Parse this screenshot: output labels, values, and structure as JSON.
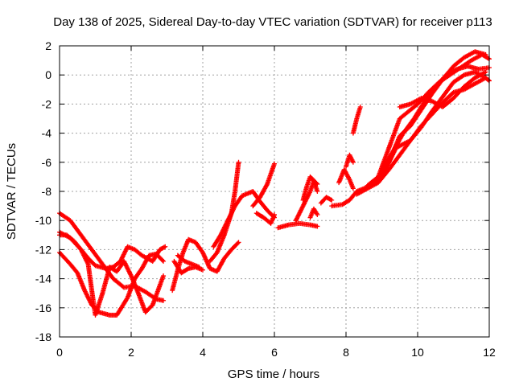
{
  "chart_data": {
    "type": "scatter",
    "title": "Day 138 of 2025, Sidereal Day-to-day VTEC variation (SDTVAR) for receiver p113",
    "xlabel": "GPS time / hours",
    "ylabel": "SDTVAR / TECUs",
    "xlim": [
      0,
      12
    ],
    "ylim": [
      -18,
      2
    ],
    "xticks": [
      0,
      2,
      4,
      6,
      8,
      10,
      12
    ],
    "yticks": [
      -18,
      -16,
      -14,
      -12,
      -10,
      -8,
      -6,
      -4,
      -2,
      0,
      2
    ],
    "xtick_labels": [
      "0",
      "2",
      "4",
      "6",
      "8",
      "10",
      "12"
    ],
    "ytick_labels": [
      "-18",
      "-16",
      "-14",
      "-12",
      "-10",
      "-8",
      "-6",
      "-4",
      "-2",
      "0",
      "2"
    ],
    "grid": true,
    "marker": "+",
    "color": "#ff0000",
    "series": [
      {
        "points": [
          [
            0.0,
            -9.5
          ],
          [
            0.3,
            -10.0
          ],
          [
            0.6,
            -11.0
          ],
          [
            0.9,
            -12.0
          ],
          [
            1.2,
            -13.0
          ],
          [
            1.5,
            -14.0
          ],
          [
            1.8,
            -14.6
          ],
          [
            2.1,
            -14.5
          ],
          [
            2.4,
            -14.9
          ],
          [
            2.7,
            -15.4
          ],
          [
            2.9,
            -15.5
          ]
        ]
      },
      {
        "points": [
          [
            0.0,
            -10.8
          ],
          [
            0.3,
            -11.2
          ],
          [
            0.6,
            -12.0
          ],
          [
            0.8,
            -13.0
          ],
          [
            0.9,
            -14.8
          ],
          [
            1.0,
            -16.5
          ],
          [
            1.2,
            -15.0
          ],
          [
            1.4,
            -13.2
          ],
          [
            1.6,
            -13.5
          ],
          [
            1.8,
            -12.8
          ],
          [
            2.0,
            -13.8
          ],
          [
            2.2,
            -15.0
          ],
          [
            2.4,
            -16.3
          ],
          [
            2.6,
            -15.8
          ],
          [
            2.9,
            -13.8
          ]
        ]
      },
      {
        "points": [
          [
            0.0,
            -12.2
          ],
          [
            0.3,
            -13.0
          ],
          [
            0.5,
            -13.6
          ],
          [
            0.7,
            -14.8
          ],
          [
            0.9,
            -15.8
          ],
          [
            1.1,
            -16.3
          ],
          [
            1.4,
            -16.5
          ],
          [
            1.6,
            -16.5
          ],
          [
            1.9,
            -15.3
          ],
          [
            2.1,
            -14.0
          ],
          [
            2.3,
            -13.3
          ],
          [
            2.5,
            -12.4
          ],
          [
            2.7,
            -12.3
          ],
          [
            2.9,
            -12.8
          ]
        ]
      },
      {
        "points": [
          [
            0.0,
            -11.0
          ],
          [
            0.2,
            -11.0
          ],
          [
            0.4,
            -11.4
          ],
          [
            0.6,
            -12.0
          ],
          [
            0.8,
            -12.6
          ],
          [
            1.0,
            -13.1
          ],
          [
            1.3,
            -13.3
          ],
          [
            1.5,
            -13.2
          ],
          [
            1.7,
            -12.8
          ],
          [
            1.9,
            -11.8
          ],
          [
            2.1,
            -12.0
          ],
          [
            2.3,
            -12.4
          ],
          [
            2.6,
            -12.8
          ],
          [
            2.8,
            -12.0
          ],
          [
            2.95,
            -11.8
          ]
        ]
      },
      {
        "points": [
          [
            3.15,
            -14.8
          ],
          [
            3.3,
            -13.4
          ],
          [
            3.45,
            -12.2
          ],
          [
            3.6,
            -11.3
          ],
          [
            3.8,
            -11.5
          ],
          [
            4.0,
            -12.2
          ],
          [
            4.2,
            -13.3
          ],
          [
            4.4,
            -13.5
          ],
          [
            4.6,
            -12.6
          ],
          [
            4.8,
            -12.0
          ],
          [
            5.0,
            -11.5
          ]
        ]
      },
      {
        "points": [
          [
            3.2,
            -12.8
          ],
          [
            3.4,
            -13.6
          ],
          [
            3.6,
            -13.3
          ],
          [
            3.8,
            -13.2
          ],
          [
            4.0,
            -13.4
          ]
        ]
      },
      {
        "points": [
          [
            3.3,
            -12.4
          ],
          [
            3.5,
            -12.8
          ],
          [
            3.7,
            -13.0
          ],
          [
            3.9,
            -13.2
          ]
        ]
      },
      {
        "points": [
          [
            4.2,
            -12.8
          ],
          [
            4.4,
            -12.2
          ],
          [
            4.6,
            -11.0
          ],
          [
            4.8,
            -9.5
          ],
          [
            4.9,
            -8.0
          ],
          [
            5.0,
            -6.0
          ]
        ]
      },
      {
        "points": [
          [
            4.3,
            -11.8
          ],
          [
            4.5,
            -11.0
          ],
          [
            4.7,
            -10.0
          ],
          [
            4.9,
            -9.0
          ],
          [
            5.1,
            -8.3
          ],
          [
            5.4,
            -8.0
          ],
          [
            5.6,
            -8.7
          ],
          [
            5.8,
            -9.3
          ],
          [
            6.0,
            -9.8
          ]
        ]
      },
      {
        "points": [
          [
            5.4,
            -9.0
          ],
          [
            5.6,
            -8.4
          ],
          [
            5.8,
            -7.5
          ],
          [
            6.0,
            -6.1
          ]
        ]
      },
      {
        "points": [
          [
            5.5,
            -9.5
          ],
          [
            5.7,
            -9.8
          ],
          [
            5.9,
            -10.2
          ],
          [
            6.0,
            -9.6
          ]
        ]
      },
      {
        "points": [
          [
            6.1,
            -10.5
          ],
          [
            6.4,
            -10.3
          ],
          [
            6.7,
            -10.2
          ],
          [
            7.0,
            -10.3
          ],
          [
            7.2,
            -10.4
          ]
        ]
      },
      {
        "points": [
          [
            6.6,
            -10.0
          ],
          [
            6.8,
            -9.0
          ],
          [
            7.0,
            -8.0
          ],
          [
            7.1,
            -7.3
          ],
          [
            7.2,
            -8.0
          ]
        ]
      },
      {
        "points": [
          [
            6.8,
            -8.6
          ],
          [
            6.9,
            -7.7
          ],
          [
            7.0,
            -7.0
          ],
          [
            7.2,
            -7.5
          ]
        ]
      },
      {
        "points": [
          [
            7.0,
            -9.8
          ],
          [
            7.1,
            -9.2
          ],
          [
            7.2,
            -9.6
          ]
        ]
      },
      {
        "points": [
          [
            7.3,
            -8.8
          ],
          [
            7.45,
            -8.4
          ],
          [
            7.6,
            -8.6
          ]
        ]
      },
      {
        "points": [
          [
            7.6,
            -9.0
          ],
          [
            7.9,
            -8.9
          ],
          [
            8.1,
            -8.6
          ],
          [
            8.3,
            -8.0
          ],
          [
            8.6,
            -7.7
          ],
          [
            9.0,
            -7.0
          ],
          [
            9.4,
            -5.0
          ],
          [
            9.8,
            -4.5
          ],
          [
            10.1,
            -3.6
          ],
          [
            10.4,
            -2.5
          ],
          [
            10.7,
            -1.5
          ],
          [
            11.0,
            -0.5
          ],
          [
            11.3,
            0.0
          ],
          [
            11.6,
            0.2
          ],
          [
            11.9,
            -0.2
          ],
          [
            12.0,
            -0.4
          ]
        ]
      },
      {
        "points": [
          [
            7.8,
            -7.4
          ],
          [
            7.95,
            -6.5
          ],
          [
            8.1,
            -7.2
          ],
          [
            8.2,
            -7.8
          ]
        ]
      },
      {
        "points": [
          [
            8.0,
            -6.3
          ],
          [
            8.1,
            -5.5
          ],
          [
            8.2,
            -6.0
          ]
        ]
      },
      {
        "points": [
          [
            8.2,
            -4.0
          ],
          [
            8.3,
            -3.0
          ],
          [
            8.4,
            -2.2
          ]
        ]
      },
      {
        "points": [
          [
            8.3,
            -8.2
          ],
          [
            8.6,
            -7.8
          ],
          [
            8.9,
            -7.4
          ],
          [
            9.2,
            -6.5
          ],
          [
            9.5,
            -5.5
          ],
          [
            9.8,
            -4.5
          ],
          [
            10.1,
            -3.5
          ],
          [
            10.4,
            -2.7
          ],
          [
            10.7,
            -1.9
          ],
          [
            11.0,
            -1.2
          ],
          [
            11.3,
            -1.0
          ],
          [
            11.6,
            -0.6
          ],
          [
            11.9,
            -0.2
          ]
        ]
      },
      {
        "points": [
          [
            8.6,
            -7.6
          ],
          [
            8.9,
            -7.0
          ],
          [
            9.2,
            -5.0
          ],
          [
            9.5,
            -3.0
          ],
          [
            9.7,
            -2.6
          ],
          [
            10.0,
            -2.0
          ],
          [
            10.3,
            -1.2
          ],
          [
            10.6,
            -0.5
          ],
          [
            10.9,
            0.0
          ],
          [
            11.2,
            0.5
          ],
          [
            11.5,
            1.0
          ],
          [
            11.8,
            1.4
          ],
          [
            12.0,
            1.1
          ]
        ]
      },
      {
        "points": [
          [
            8.9,
            -7.2
          ],
          [
            9.2,
            -6.0
          ],
          [
            9.5,
            -4.2
          ],
          [
            9.8,
            -3.5
          ],
          [
            10.1,
            -2.4
          ],
          [
            10.4,
            -1.3
          ],
          [
            10.7,
            -0.3
          ],
          [
            11.0,
            0.6
          ],
          [
            11.3,
            1.2
          ],
          [
            11.6,
            1.6
          ],
          [
            11.9,
            1.4
          ]
        ]
      },
      {
        "points": [
          [
            9.0,
            -6.5
          ],
          [
            9.3,
            -5.3
          ],
          [
            9.6,
            -4.0
          ],
          [
            9.9,
            -3.0
          ],
          [
            10.2,
            -1.8
          ],
          [
            10.5,
            -0.8
          ],
          [
            10.8,
            0.0
          ],
          [
            11.1,
            0.4
          ],
          [
            11.4,
            0.6
          ],
          [
            11.7,
            0.4
          ],
          [
            12.0,
            0.5
          ]
        ]
      },
      {
        "points": [
          [
            9.5,
            -2.2
          ],
          [
            9.8,
            -2.0
          ],
          [
            10.1,
            -1.6
          ],
          [
            10.4,
            -1.8
          ],
          [
            10.7,
            -2.2
          ],
          [
            11.0,
            -1.6
          ],
          [
            11.3,
            -0.8
          ],
          [
            11.6,
            -0.2
          ],
          [
            11.9,
            0.2
          ]
        ]
      }
    ]
  }
}
